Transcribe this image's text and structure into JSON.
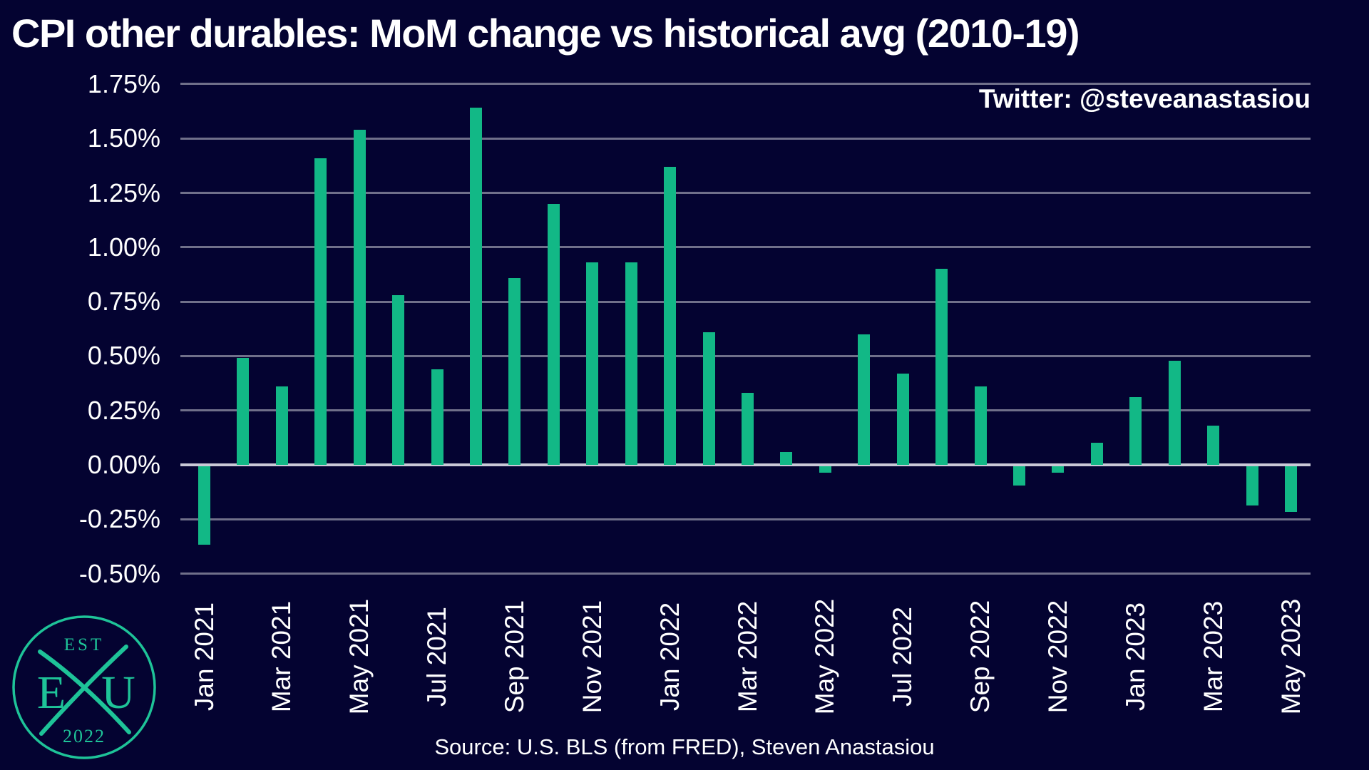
{
  "title": "CPI other durables: MoM change vs historical avg (2010-19)",
  "twitter_handle": "Twitter: @steveanastasiou",
  "source": "Source: U.S. BLS (from FRED), Steven Anastasiou",
  "logo": {
    "est_label": "EST",
    "year_label": "2022",
    "letter_left": "E",
    "letter_right": "U"
  },
  "colors": {
    "background": "#040331",
    "bar": "#12b886",
    "gridline": "#70708a",
    "zero_line": "#c9c9d6",
    "text": "#ffffff",
    "logo_green": "#1ec398"
  },
  "chart_data": {
    "type": "bar",
    "title": "CPI other durables: MoM change vs historical avg (2010-19)",
    "series_name": "MoM change vs historical avg (2010-19)",
    "categories": [
      "Jan 2021",
      "Feb 2021",
      "Mar 2021",
      "Apr 2021",
      "May 2021",
      "Jun 2021",
      "Jul 2021",
      "Aug 2021",
      "Sep 2021",
      "Oct 2021",
      "Nov 2021",
      "Dec 2021",
      "Jan 2022",
      "Feb 2022",
      "Mar 2022",
      "Apr 2022",
      "May 2022",
      "Jun 2022",
      "Jul 2022",
      "Aug 2022",
      "Sep 2022",
      "Oct 2022",
      "Nov 2022",
      "Dec 2022",
      "Jan 2023",
      "Feb 2023",
      "Mar 2023",
      "Apr 2023",
      "May 2023"
    ],
    "values": [
      -0.36,
      0.49,
      0.36,
      1.41,
      1.54,
      0.78,
      0.44,
      1.64,
      0.86,
      1.2,
      0.93,
      0.93,
      1.37,
      0.61,
      0.33,
      0.06,
      -0.03,
      0.6,
      0.42,
      0.9,
      0.36,
      -0.09,
      -0.03,
      0.1,
      0.31,
      0.48,
      0.18,
      -0.18,
      -0.21
    ],
    "x_tick_labels": [
      "Jan 2021",
      "Mar 2021",
      "May 2021",
      "Jul 2021",
      "Sep 2021",
      "Nov 2021",
      "Jan 2022",
      "Mar 2022",
      "May 2022",
      "Jul 2022",
      "Sep 2022",
      "Nov 2022",
      "Jan 2023",
      "Mar 2023",
      "May 2023"
    ],
    "x_tick_every": 2,
    "y_ticks": [
      {
        "value": 1.75,
        "label": "1.75%"
      },
      {
        "value": 1.5,
        "label": "1.50%"
      },
      {
        "value": 1.25,
        "label": "1.25%"
      },
      {
        "value": 1.0,
        "label": "1.00%"
      },
      {
        "value": 0.75,
        "label": "0.75%"
      },
      {
        "value": 0.5,
        "label": "0.50%"
      },
      {
        "value": 0.25,
        "label": "0.25%"
      },
      {
        "value": 0.0,
        "label": "0.00%"
      },
      {
        "value": -0.25,
        "label": "-0.25%"
      },
      {
        "value": -0.5,
        "label": "-0.50%"
      }
    ],
    "ylim": [
      -0.5,
      1.75
    ],
    "grid": true,
    "legend": false,
    "unit": "%"
  }
}
